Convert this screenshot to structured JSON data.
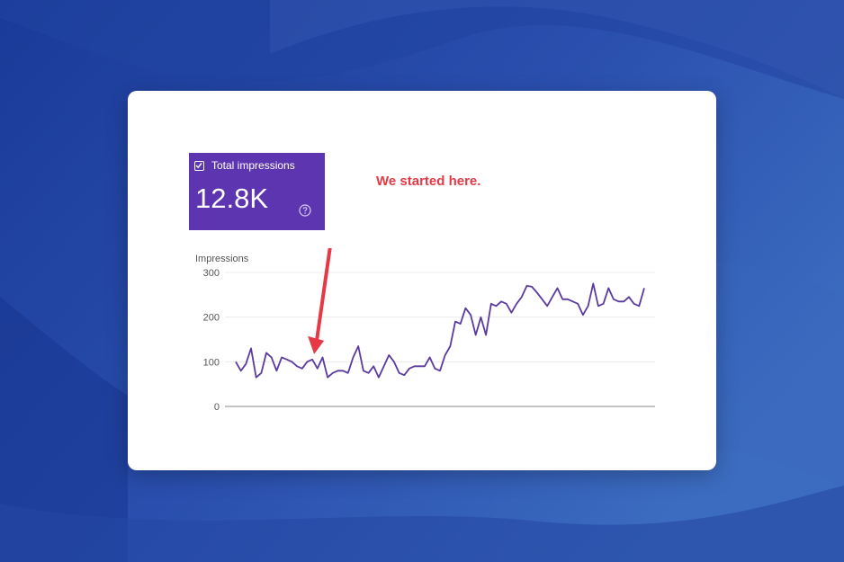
{
  "colors": {
    "accent": "#5e35b1",
    "line": "#5b3aa0",
    "annotation": "#e53945",
    "background": "#2a4ba8"
  },
  "metric": {
    "label": "Total impressions",
    "value": "12.8K",
    "checked": true,
    "help_icon": "help-circle-icon"
  },
  "annotation": {
    "text": "We started here.",
    "arrow_points_to_index": 15
  },
  "chart_data": {
    "type": "line",
    "ylabel": "Impressions",
    "yticks": [
      "300",
      "200",
      "100",
      "0"
    ],
    "ylim": [
      0,
      300
    ],
    "grid": true,
    "series": [
      {
        "values": [
          100,
          80,
          95,
          130,
          65,
          75,
          120,
          110,
          80,
          110,
          105,
          100,
          90,
          85,
          100,
          105,
          85,
          110,
          65,
          75,
          80,
          80,
          75,
          110,
          135,
          80,
          75,
          90,
          65,
          90,
          115,
          100,
          75,
          70,
          85,
          90,
          90,
          90,
          110,
          85,
          80,
          115,
          135,
          190,
          185,
          220,
          205,
          160,
          200,
          160,
          230,
          225,
          235,
          230,
          210,
          230,
          245,
          270,
          268,
          255,
          240,
          225,
          245,
          265,
          240,
          240,
          235,
          230,
          205,
          225,
          275,
          225,
          230,
          265,
          240,
          235,
          235,
          245,
          230,
          225,
          265
        ]
      }
    ]
  }
}
